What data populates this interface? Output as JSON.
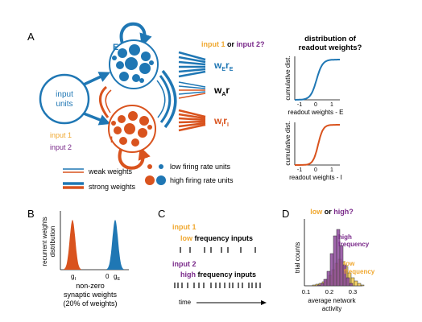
{
  "panels": {
    "A": "A",
    "B": "B",
    "C": "C",
    "D": "D"
  },
  "colors": {
    "exc_blue": "#1f77b4",
    "inh_red": "#d9531e",
    "input1_orange": "#f0a830",
    "input2_purple": "#7a2a8a",
    "low_hist": "#f2c94c",
    "high_hist": "#8e4a9e"
  },
  "panelA": {
    "input_units_line1": "input",
    "input_units_line2": "units",
    "E_label": "E",
    "I_label": "I",
    "input1": "input 1",
    "input2": "input 2",
    "question_input1": "input 1",
    "question_or": " or ",
    "question_input2": "input 2?",
    "weE_w": "w",
    "weE_sub1": "E",
    "weE_r": "r",
    "weE_sub2": "E",
    "wA_w": "w",
    "wA_sub": "A",
    "wA_r": "r",
    "wI_w": "w",
    "wI_sub1": "I",
    "wI_r": "r",
    "wI_sub2": "I",
    "legend_weak": "weak weights",
    "legend_strong": "strong weights",
    "legend_low": "low firing rate units",
    "legend_high": "high firing rate units",
    "dist_title_line1": "distribution of",
    "dist_title_line2": "readout weights?",
    "cdf_E": {
      "ylabel": "cumulative dist.",
      "xlabel": "readout weights - E",
      "ticks": [
        "-1",
        "0",
        "1"
      ]
    },
    "cdf_I": {
      "ylabel": "cumulative dist.",
      "xlabel": "readout weights - I",
      "ticks": [
        "-1",
        "0",
        "1"
      ]
    }
  },
  "panelB": {
    "ylabel_line1": "recurrent weights",
    "ylabel_line2": "distribution",
    "tick_gI_g": "g",
    "tick_gI_sub": "I",
    "tick_zero": "0",
    "tick_gE_g": "g",
    "tick_gE_sub": "E",
    "caption_line1": "non-zero",
    "caption_line2": "synaptic weights",
    "caption_line3": "(20% of weights)"
  },
  "panelC": {
    "input1": "input 1",
    "low_word": "low",
    "low_rest": " frequency inputs",
    "input2": "input 2",
    "high_word": "high",
    "high_rest": " frequency inputs",
    "time_label": "time"
  },
  "panelD": {
    "question_low": "low",
    "question_or": " or ",
    "question_high": "high?",
    "ylabel": "trial counts",
    "xlabel_line1": "average network",
    "xlabel_line2": "activity",
    "xticks": [
      "0.1",
      "0.2",
      "0.3"
    ],
    "xlim": [
      0.1,
      0.33
    ],
    "high_label_line1": "high",
    "high_label_line2": "frequency",
    "low_label_line1": "low",
    "low_label_line2": "frequency"
  }
}
